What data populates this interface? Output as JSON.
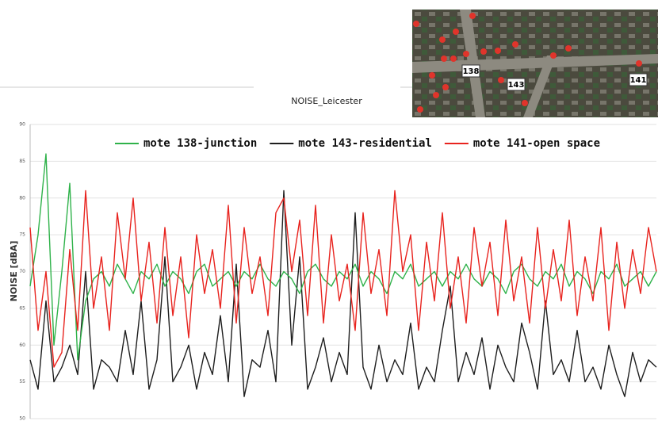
{
  "chart_data": {
    "type": "line",
    "title": "NOISE_Leicester",
    "y_label": "NOISE [dBA]",
    "map_labels": [
      "138",
      "143",
      "141"
    ],
    "ylim": [
      50,
      90
    ],
    "yticks": [
      50,
      55,
      60,
      65,
      70,
      75,
      80,
      85,
      90
    ],
    "grid": true,
    "series": [
      {
        "name": "mote 138-junction",
        "color": "#2fb24a",
        "values": [
          68,
          75,
          86,
          60,
          70,
          82,
          58,
          66,
          69,
          70,
          68,
          71,
          69,
          67,
          70,
          69,
          71,
          68,
          70,
          69,
          67,
          70,
          71,
          68,
          69,
          70,
          68,
          70,
          69,
          71,
          69,
          68,
          70,
          69,
          67,
          70,
          71,
          69,
          68,
          70,
          69,
          71,
          68,
          70,
          69,
          67,
          70,
          69,
          71,
          68,
          69,
          70,
          68,
          70,
          69,
          71,
          69,
          68,
          70,
          69,
          67,
          70,
          71,
          69,
          68,
          70,
          69,
          71,
          68,
          70,
          69,
          67,
          70,
          69,
          71,
          68,
          69,
          70,
          68,
          70
        ]
      },
      {
        "name": "mote 143-residential",
        "color": "#1e1e1e",
        "values": [
          58,
          54,
          66,
          55,
          57,
          60,
          56,
          70,
          54,
          58,
          57,
          55,
          62,
          56,
          66,
          54,
          58,
          72,
          55,
          57,
          60,
          54,
          59,
          56,
          64,
          55,
          71,
          53,
          58,
          57,
          62,
          55,
          81,
          60,
          72,
          54,
          57,
          61,
          55,
          59,
          56,
          78,
          57,
          54,
          60,
          55,
          58,
          56,
          63,
          54,
          57,
          55,
          62,
          68,
          55,
          59,
          56,
          61,
          54,
          60,
          57,
          55,
          63,
          59,
          54,
          66,
          56,
          58,
          55,
          62,
          55,
          57,
          54,
          60,
          56,
          53,
          59,
          55,
          58,
          57
        ]
      },
      {
        "name": "mote 141-open space",
        "color": "#e8231e",
        "values": [
          76,
          62,
          70,
          57,
          59,
          73,
          62,
          81,
          65,
          72,
          62,
          78,
          69,
          80,
          66,
          74,
          63,
          76,
          64,
          72,
          61,
          75,
          67,
          73,
          65,
          79,
          63,
          76,
          67,
          72,
          64,
          78,
          80,
          70,
          77,
          64,
          79,
          63,
          75,
          66,
          71,
          62,
          78,
          67,
          73,
          64,
          81,
          70,
          75,
          62,
          74,
          66,
          78,
          65,
          72,
          63,
          76,
          68,
          74,
          64,
          77,
          66,
          72,
          63,
          76,
          65,
          73,
          66,
          77,
          64,
          72,
          66,
          76,
          62,
          74,
          65,
          73,
          67,
          76,
          70
        ]
      }
    ]
  }
}
